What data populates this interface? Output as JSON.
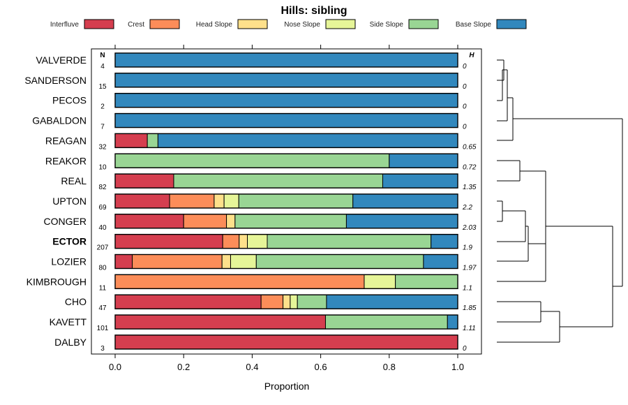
{
  "chart_data": {
    "type": "bar",
    "orientation": "horizontal",
    "stacked": true,
    "title": "Hills: sibling",
    "xlabel": "Proportion",
    "ylabel": "",
    "xlim": [
      0,
      1
    ],
    "x_ticks": [
      "0.0",
      "0.2",
      "0.4",
      "0.6",
      "0.8",
      "1.0"
    ],
    "n_header": "N",
    "h_header": "H",
    "legend_placement": "top",
    "series": [
      {
        "name": "Interfluve",
        "color": "#d53e4f"
      },
      {
        "name": "Crest",
        "color": "#fc8d59"
      },
      {
        "name": "Head Slope",
        "color": "#fee08b"
      },
      {
        "name": "Nose Slope",
        "color": "#e6f598"
      },
      {
        "name": "Side Slope",
        "color": "#99d594"
      },
      {
        "name": "Base Slope",
        "color": "#3288bd"
      }
    ],
    "categories": [
      {
        "name": "VALVERDE",
        "n": "4",
        "h": "0",
        "bold": false,
        "values": [
          0,
          0,
          0,
          0,
          0,
          1.0
        ]
      },
      {
        "name": "SANDERSON",
        "n": "15",
        "h": "0",
        "bold": false,
        "values": [
          0,
          0,
          0,
          0,
          0,
          1.0
        ]
      },
      {
        "name": "PECOS",
        "n": "2",
        "h": "0",
        "bold": false,
        "values": [
          0,
          0,
          0,
          0,
          0,
          1.0
        ]
      },
      {
        "name": "GABALDON",
        "n": "7",
        "h": "0",
        "bold": false,
        "values": [
          0,
          0,
          0,
          0,
          0,
          1.0
        ]
      },
      {
        "name": "REAGAN",
        "n": "32",
        "h": "0.65",
        "bold": false,
        "values": [
          0.094,
          0,
          0,
          0,
          0.031,
          0.875
        ]
      },
      {
        "name": "REAKOR",
        "n": "10",
        "h": "0.72",
        "bold": false,
        "values": [
          0,
          0,
          0,
          0,
          0.8,
          0.2
        ]
      },
      {
        "name": "REAL",
        "n": "82",
        "h": "1.35",
        "bold": false,
        "values": [
          0.171,
          0,
          0,
          0,
          0.61,
          0.219
        ]
      },
      {
        "name": "UPTON",
        "n": "69",
        "h": "2.2",
        "bold": false,
        "values": [
          0.159,
          0.13,
          0.029,
          0.043,
          0.333,
          0.306
        ]
      },
      {
        "name": "CONGER",
        "n": "40",
        "h": "2.03",
        "bold": false,
        "values": [
          0.2,
          0.125,
          0.025,
          0,
          0.325,
          0.325
        ]
      },
      {
        "name": "ECTOR",
        "n": "207",
        "h": "1.9",
        "bold": true,
        "values": [
          0.314,
          0.048,
          0.024,
          0.058,
          0.478,
          0.078
        ]
      },
      {
        "name": "LOZIER",
        "n": "80",
        "h": "1.97",
        "bold": false,
        "values": [
          0.05,
          0.262,
          0.025,
          0.075,
          0.488,
          0.1
        ]
      },
      {
        "name": "KIMBROUGH",
        "n": "11",
        "h": "1.1",
        "bold": false,
        "values": [
          0,
          0.727,
          0,
          0.091,
          0.182,
          0
        ]
      },
      {
        "name": "CHO",
        "n": "47",
        "h": "1.85",
        "bold": false,
        "values": [
          0.426,
          0.064,
          0.021,
          0.021,
          0.085,
          0.383
        ]
      },
      {
        "name": "KAVETT",
        "n": "101",
        "h": "1.11",
        "bold": false,
        "values": [
          0.614,
          0,
          0,
          0,
          0.356,
          0.03
        ]
      },
      {
        "name": "DALBY",
        "n": "3",
        "h": "0",
        "bold": false,
        "values": [
          1.0,
          0,
          0,
          0,
          0,
          0
        ]
      }
    ]
  }
}
